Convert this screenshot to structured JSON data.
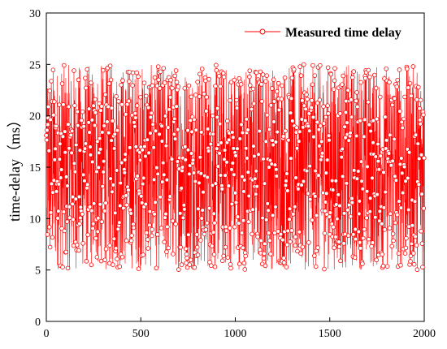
{
  "chart_data": {
    "type": "line",
    "title": "",
    "xlabel": "",
    "ylabel": "time-delay（ms）",
    "xlim": [
      0,
      2000
    ],
    "ylim": [
      0,
      30
    ],
    "xticks": [
      0,
      500,
      1000,
      1500,
      2000
    ],
    "yticks": [
      0,
      5,
      10,
      15,
      20,
      25,
      30
    ],
    "grid": false,
    "legend_position": "top-right",
    "series": [
      {
        "name": "Measured time delay",
        "color": "#ff0000",
        "marker": "open-circle",
        "sample_count": 2000,
        "value_min": 5,
        "value_max": 25,
        "distribution": "approximately uniform random between 5 and 25 ms"
      }
    ]
  }
}
